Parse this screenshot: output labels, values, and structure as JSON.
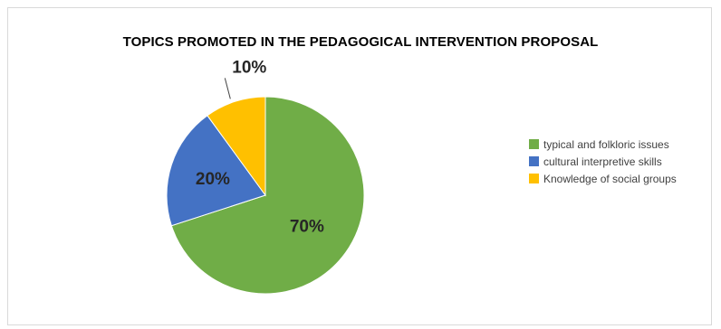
{
  "chart_data": {
    "type": "pie",
    "title": "TOPICS PROMOTED IN THE PEDAGOGICAL INTERVENTION PROPOSAL",
    "categories": [
      "typical and folkloric issues",
      "cultural interpretive skills",
      "Knowledge of social groups"
    ],
    "values": [
      70,
      20,
      10
    ],
    "data_labels": [
      "70%",
      "20%",
      "10%"
    ],
    "colors": [
      "#70ad47",
      "#4472c4",
      "#ffc000"
    ],
    "start_angle_deg": 0,
    "direction": "clockwise",
    "legend_position": "right"
  }
}
